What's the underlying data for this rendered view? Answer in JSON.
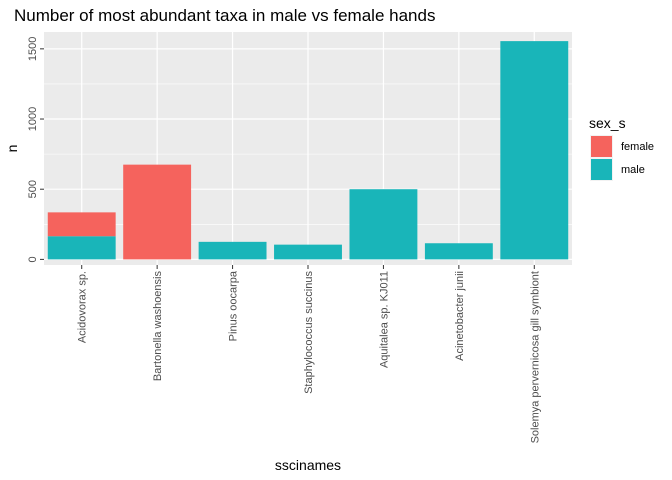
{
  "chart_data": {
    "type": "bar",
    "stacked": true,
    "title": "Number of most abundant taxa in male vs female hands",
    "xlabel": "sscinames",
    "ylabel": "n",
    "ylim": [
      -40,
      1620
    ],
    "yticks": [
      0,
      500,
      1000,
      1500
    ],
    "yticklabels": [
      "0",
      "500",
      "1000",
      "1500"
    ],
    "grid": true,
    "legend_position": "right",
    "legend_title": "sex_s",
    "categories": [
      "Acidovorax sp.",
      "Bartonella washoensis",
      "Pinus oocarpa",
      "Staphylococcus succinus",
      "Aquitalea sp. KJ011",
      "Acinetobacter junii",
      "Solemya pervernicosa gill symbiont"
    ],
    "series": [
      {
        "name": "male",
        "color": "#19b5b9",
        "values": [
          165,
          0,
          125,
          105,
          500,
          115,
          1555
        ]
      },
      {
        "name": "female",
        "color": "#f5635d",
        "values": [
          170,
          675,
          0,
          0,
          0,
          0,
          0
        ]
      }
    ]
  }
}
